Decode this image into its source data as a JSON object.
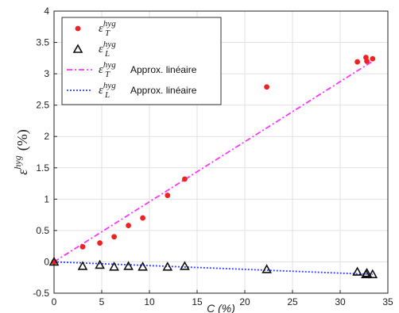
{
  "chart_data": {
    "type": "scatter",
    "xlabel": "C (%)",
    "ylabel": {
      "base": "ε",
      "sup": "hyg",
      "unit": "(%)"
    },
    "xlim": [
      0,
      35
    ],
    "ylim": [
      -0.5,
      4
    ],
    "x_ticks": [
      "0",
      "5",
      "10",
      "15",
      "20",
      "25",
      "30",
      "35"
    ],
    "y_ticks": [
      "-0.5",
      "0",
      "0.5",
      "1",
      "1.5",
      "2",
      "2.5",
      "3",
      "3.5",
      "4"
    ],
    "grid": true,
    "legend_position": "top-left",
    "series": [
      {
        "kind": "points",
        "marker": "dot",
        "color": "#ee2222",
        "legend": {
          "sym": "ε",
          "sup": "hyg",
          "sub": "T",
          "text": ""
        },
        "x": [
          0,
          3,
          4.8,
          6.3,
          7.8,
          9.3,
          11.9,
          13.7,
          22.3,
          31.8,
          32.7,
          32.8,
          33.4
        ],
        "y": [
          0,
          0.24,
          0.3,
          0.4,
          0.58,
          0.7,
          1.06,
          1.32,
          2.79,
          3.19,
          3.26,
          3.2,
          3.24
        ]
      },
      {
        "kind": "points",
        "marker": "triangle",
        "color": "#111111",
        "legend": {
          "sym": "ε",
          "sup": "hyg",
          "sub": "L",
          "text": ""
        },
        "x": [
          0,
          3,
          4.8,
          6.3,
          7.8,
          9.3,
          11.9,
          13.7,
          22.3,
          31.8,
          32.7,
          32.8,
          33.4
        ],
        "y": [
          0,
          -0.07,
          -0.05,
          -0.08,
          -0.07,
          -0.08,
          -0.08,
          -0.07,
          -0.12,
          -0.16,
          -0.2,
          -0.18,
          -0.2
        ]
      },
      {
        "kind": "line",
        "dash": "7 3 2 3",
        "color": "#ff33ff",
        "legend": {
          "sym": "ε",
          "sup": "hyg",
          "sub": "T",
          "text": "Approx. linéaire"
        },
        "x": [
          0,
          33.4
        ],
        "y": [
          0,
          3.2
        ]
      },
      {
        "kind": "line",
        "dash": "2 2",
        "color": "#3344ee",
        "legend": {
          "sym": "ε",
          "sup": "hyg",
          "sub": "L",
          "text": "Approx. linéaire"
        },
        "x": [
          0,
          33.4
        ],
        "y": [
          0,
          -0.2
        ]
      }
    ]
  }
}
